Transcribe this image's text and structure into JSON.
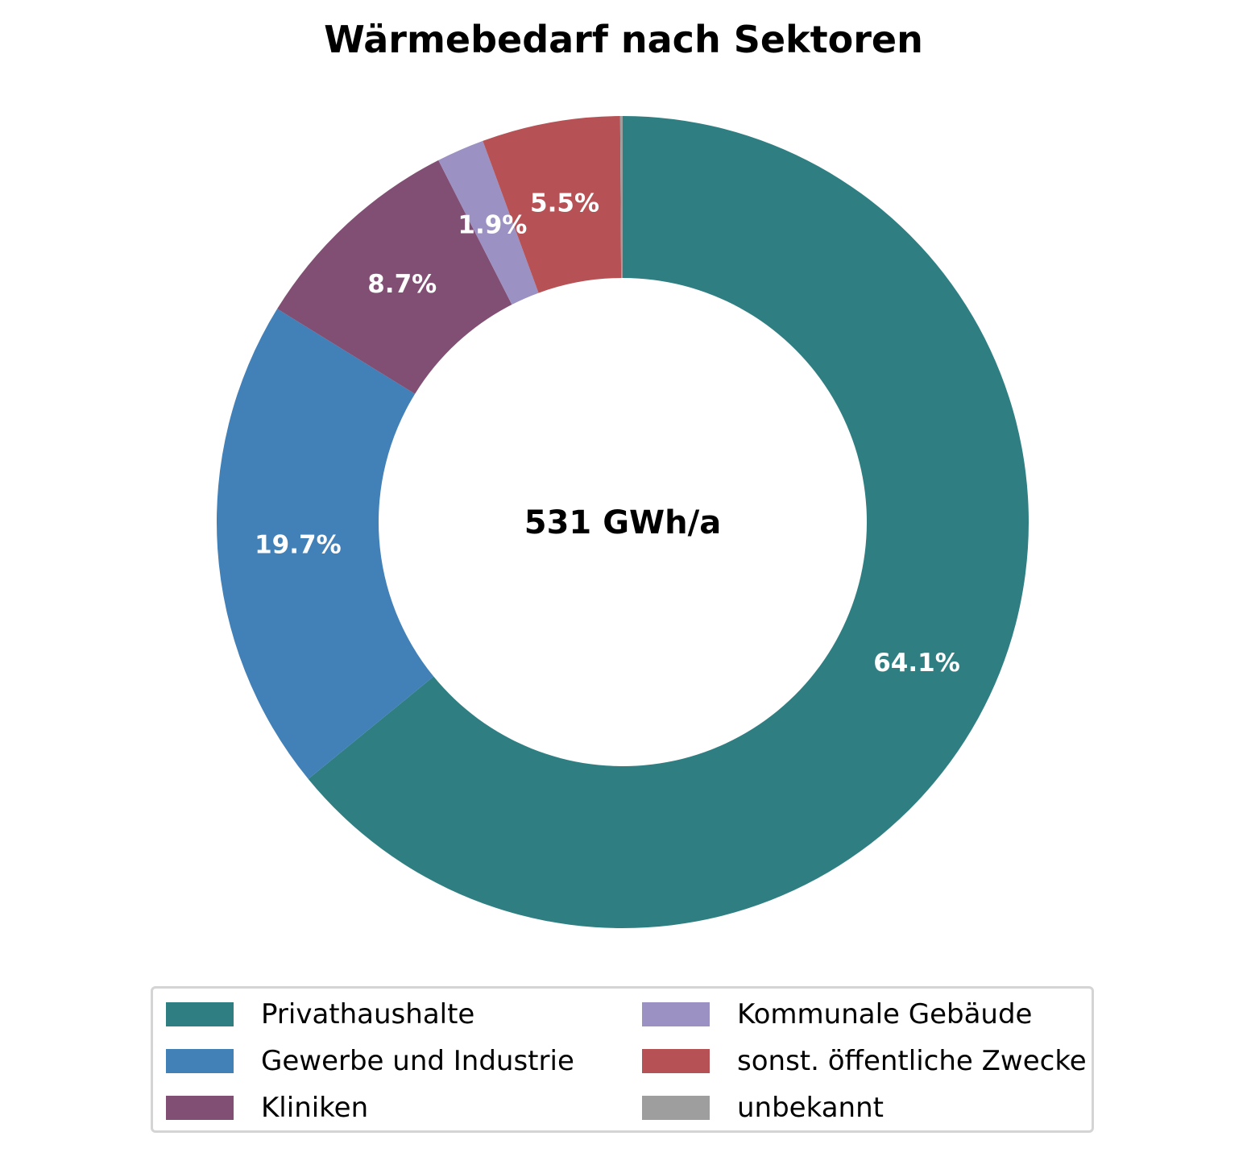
{
  "chart_data": {
    "type": "pie",
    "style": "donut",
    "title": "Wärmebedarf nach Sektoren",
    "center_label": "531 GWh/a",
    "slices": [
      {
        "name": "Privathaushalte",
        "value": 64.1,
        "label": "64.1%",
        "color": "#2f7f82"
      },
      {
        "name": "Gewerbe und Industrie",
        "value": 19.7,
        "label": "19.7%",
        "color": "#4280b8"
      },
      {
        "name": "Kliniken",
        "value": 8.7,
        "label": "8.7%",
        "color": "#814e74"
      },
      {
        "name": "Kommunale Gebäude",
        "value": 1.9,
        "label": "1.9%",
        "color": "#9b91c2"
      },
      {
        "name": "sonst. öffentliche Zwecke",
        "value": 5.5,
        "label": "5.5%",
        "color": "#b65255"
      },
      {
        "name": "unbekannt",
        "value": 0.1,
        "label": "",
        "color": "#9e9e9e"
      }
    ],
    "legend": {
      "placement": "bottom",
      "columns": 2,
      "entries": [
        "Privathaushalte",
        "Gewerbe und Industrie",
        "Kliniken",
        "Kommunale Gebäude",
        "sonst. öffentliche Zwecke",
        "unbekannt"
      ]
    }
  }
}
